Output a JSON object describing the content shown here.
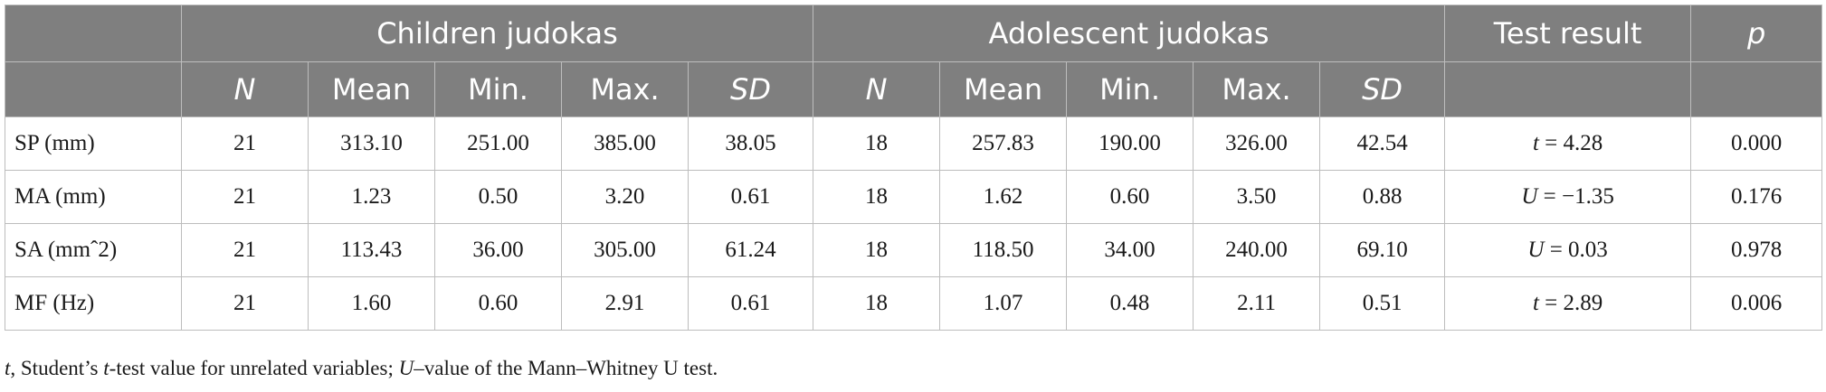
{
  "header": {
    "group_children": "Children judokas",
    "group_adolescent": "Adolescent judokas",
    "test_result": "Test result",
    "p": "p",
    "sub_columns": [
      "N",
      "Mean",
      "Min.",
      "Max.",
      "SD"
    ]
  },
  "rows": [
    {
      "label": "SP (mm)",
      "children": [
        "21",
        "313.10",
        "251.00",
        "385.00",
        "38.05"
      ],
      "adolescent": [
        "18",
        "257.83",
        "190.00",
        "326.00",
        "42.54"
      ],
      "test_symbol": "t",
      "test_value": " = 4.28",
      "p": "0.000"
    },
    {
      "label": "MA (mm)",
      "children": [
        "21",
        "1.23",
        "0.50",
        "3.20",
        "0.61"
      ],
      "adolescent": [
        "18",
        "1.62",
        "0.60",
        "3.50",
        "0.88"
      ],
      "test_symbol": "U",
      "test_value": " = −1.35",
      "p": "0.176"
    },
    {
      "label": "SA (mmˆ2)",
      "children": [
        "21",
        "113.43",
        "36.00",
        "305.00",
        "61.24"
      ],
      "adolescent": [
        "18",
        "118.50",
        "34.00",
        "240.00",
        "69.10"
      ],
      "test_symbol": "U",
      "test_value": " = 0.03",
      "p": "0.978"
    },
    {
      "label": "MF (Hz)",
      "children": [
        "21",
        "1.60",
        "0.60",
        "2.91",
        "0.61"
      ],
      "adolescent": [
        "18",
        "1.07",
        "0.48",
        "2.11",
        "0.51"
      ],
      "test_symbol": "t",
      "test_value": " = 2.89",
      "p": "0.006"
    }
  ],
  "footnote": {
    "t_symbol": "t",
    "part1": ", Student’s ",
    "t_italic": "t",
    "part2": "-test value for unrelated variables; ",
    "u_symbol": "U",
    "part3": "–value of the Mann–Whitney U test."
  }
}
